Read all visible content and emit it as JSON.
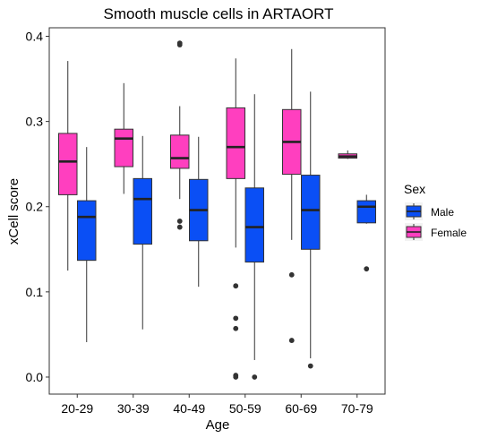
{
  "chart_data": {
    "type": "box",
    "title": "Smooth muscle cells in ARTAORT",
    "xlabel": "Age",
    "ylabel": "xCell score",
    "categories": [
      "20-29",
      "30-39",
      "40-49",
      "50-59",
      "60-69",
      "70-79"
    ],
    "y_ticks": [
      "0.0",
      "0.1",
      "0.2",
      "0.3",
      "0.4"
    ],
    "ylim": [
      -0.02,
      0.41
    ],
    "grid": false,
    "legend": {
      "title": "Sex",
      "position": "right",
      "entries": [
        {
          "name": "Male",
          "color": "#0a4ff5"
        },
        {
          "name": "Female",
          "color": "#ff3fbf"
        }
      ]
    },
    "series": [
      {
        "name": "Female",
        "color": "#ff3fbf",
        "boxes": [
          {
            "category": "20-29",
            "min": 0.125,
            "q1": 0.214,
            "median": 0.253,
            "q3": 0.286,
            "max": 0.371,
            "outliers": []
          },
          {
            "category": "30-39",
            "min": 0.215,
            "q1": 0.247,
            "median": 0.28,
            "q3": 0.291,
            "max": 0.345,
            "outliers": []
          },
          {
            "category": "40-49",
            "min": 0.209,
            "q1": 0.245,
            "median": 0.257,
            "q3": 0.284,
            "max": 0.318,
            "outliers": [
              0.183,
              0.176,
              0.39,
              0.392
            ]
          },
          {
            "category": "50-59",
            "min": 0.152,
            "q1": 0.233,
            "median": 0.27,
            "q3": 0.316,
            "max": 0.374,
            "outliers": [
              0.107,
              0.069,
              0.057,
              0.002,
              0.0
            ]
          },
          {
            "category": "60-69",
            "min": 0.161,
            "q1": 0.238,
            "median": 0.276,
            "q3": 0.314,
            "max": 0.385,
            "outliers": [
              0.12,
              0.043
            ]
          },
          {
            "category": "70-79",
            "min": 0.256,
            "q1": 0.257,
            "median": 0.259,
            "q3": 0.262,
            "max": 0.266,
            "outliers": []
          }
        ]
      },
      {
        "name": "Male",
        "color": "#0a4ff5",
        "boxes": [
          {
            "category": "20-29",
            "min": 0.041,
            "q1": 0.137,
            "median": 0.188,
            "q3": 0.207,
            "max": 0.27,
            "outliers": []
          },
          {
            "category": "30-39",
            "min": 0.056,
            "q1": 0.156,
            "median": 0.209,
            "q3": 0.233,
            "max": 0.283,
            "outliers": []
          },
          {
            "category": "40-49",
            "min": 0.106,
            "q1": 0.16,
            "median": 0.196,
            "q3": 0.232,
            "max": 0.282,
            "outliers": []
          },
          {
            "category": "50-59",
            "min": 0.02,
            "q1": 0.135,
            "median": 0.176,
            "q3": 0.222,
            "max": 0.332,
            "outliers": [
              0.0
            ]
          },
          {
            "category": "60-69",
            "min": 0.022,
            "q1": 0.15,
            "median": 0.196,
            "q3": 0.237,
            "max": 0.335,
            "outliers": [
              0.013
            ]
          },
          {
            "category": "70-79",
            "min": 0.18,
            "q1": 0.181,
            "median": 0.2,
            "q3": 0.207,
            "max": 0.214,
            "outliers": [
              0.127
            ]
          }
        ]
      }
    ]
  }
}
